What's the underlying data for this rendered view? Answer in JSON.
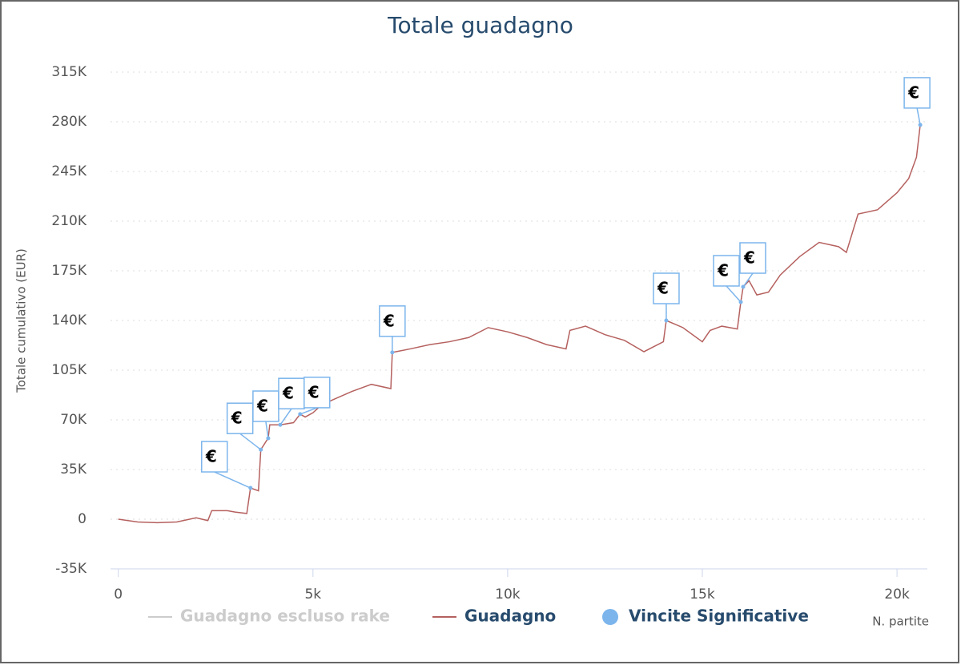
{
  "chart_data": {
    "type": "line",
    "title": "Totale guadagno",
    "x_label": "N. partite",
    "y_label": "Totale cumulativo (EUR)",
    "xlim": [
      -200,
      20780
    ],
    "ylim": [
      -35000,
      315000
    ],
    "xticks": [
      0,
      {
        "value": 5000,
        "label": "5k"
      },
      {
        "value": 10000,
        "label": "10k"
      },
      {
        "value": 15000,
        "label": "15k"
      },
      {
        "value": 20000,
        "label": "20k"
      }
    ],
    "yticks": [
      {
        "value": -35000,
        "label": "-35K"
      },
      0,
      {
        "value": 35000,
        "label": "35K"
      },
      {
        "value": 70000,
        "label": "70K"
      },
      {
        "value": 105000,
        "label": "105K"
      },
      {
        "value": 140000,
        "label": "140K"
      },
      {
        "value": 175000,
        "label": "175K"
      },
      {
        "value": 210000,
        "label": "210K"
      },
      {
        "value": 245000,
        "label": "245K"
      },
      {
        "value": 280000,
        "label": "280K"
      },
      {
        "value": 315000,
        "label": "315K"
      }
    ],
    "grid": true,
    "series": [
      {
        "name": "Guadagno escluso rake",
        "color": "#cccccc",
        "visible": false
      },
      {
        "name": "Guadagno",
        "color": "#b5615f",
        "type": "line",
        "x": [
          0,
          500,
          1000,
          1500,
          2000,
          2300,
          2400,
          2800,
          3000,
          3300,
          3395,
          3600,
          3660,
          3800,
          3850,
          3890,
          4160,
          4500,
          4670,
          4800,
          5000,
          5200,
          5500,
          6000,
          6500,
          7000,
          7037,
          7500,
          8000,
          8500,
          9000,
          9500,
          10000,
          10500,
          11000,
          11500,
          11600,
          12000,
          12500,
          13000,
          13500,
          14000,
          14074,
          14500,
          15000,
          15200,
          15500,
          15900,
          15988,
          16049,
          16200,
          16400,
          16700,
          17000,
          17500,
          18000,
          18500,
          18700,
          19000,
          19500,
          20000,
          20300,
          20500,
          20597
        ],
        "values": [
          0,
          -2000,
          -2500,
          -2000,
          1000,
          -1000,
          6000,
          6000,
          5000,
          4000,
          22000,
          20000,
          49000,
          55000,
          57000,
          66500,
          66500,
          68000,
          74000,
          72000,
          75000,
          80000,
          84000,
          90000,
          95000,
          92000,
          117500,
          120000,
          123000,
          125000,
          128000,
          135000,
          132000,
          128000,
          123000,
          120000,
          133000,
          136000,
          130000,
          126000,
          118000,
          125000,
          140000,
          135000,
          125000,
          133000,
          136000,
          134000,
          153000,
          163700,
          168000,
          158000,
          160000,
          172000,
          185000,
          195000,
          192000,
          188000,
          215000,
          218000,
          230000,
          240000,
          255000,
          277800
        ]
      },
      {
        "name": "Vincite Significative",
        "color": "#7cb5ec",
        "type": "scatter",
        "x": [
          3395,
          3660,
          3850,
          4160,
          4670,
          7037,
          14074,
          15988,
          16049,
          20597
        ],
        "values": [
          22000,
          49000,
          57000,
          66500,
          74000,
          117500,
          140000,
          153000,
          163700,
          277800
        ],
        "labels": [
          "€",
          "€",
          "€",
          "€",
          "€",
          "€",
          "€",
          "€",
          "€",
          "€"
        ]
      }
    ]
  }
}
